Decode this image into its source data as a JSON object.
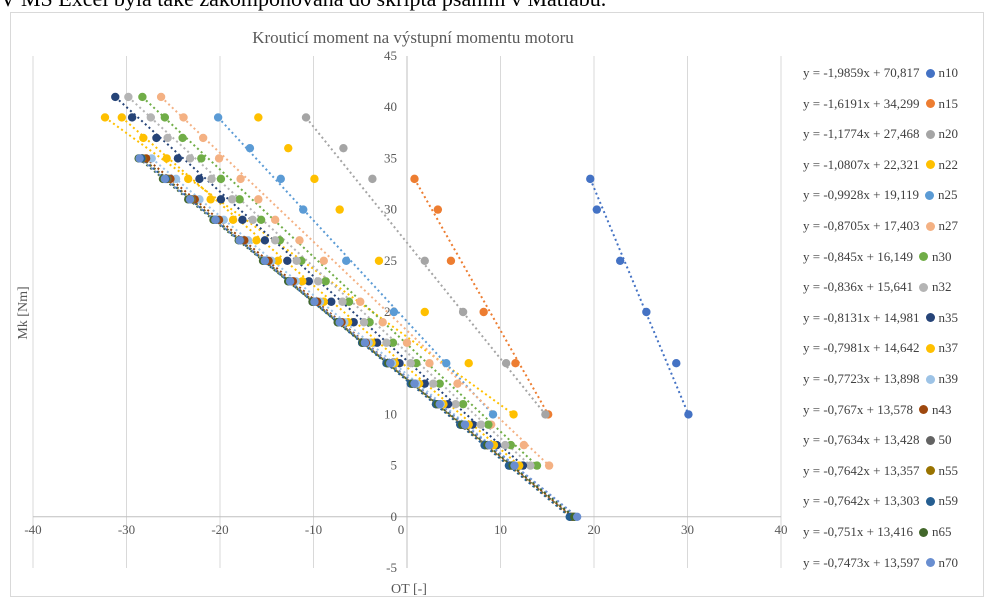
{
  "top_caption": "V MS Excel byla také zakomponována do skripta psaním v Matlabu.",
  "chart_data": {
    "type": "scatter",
    "title": "Krouticí moment na výstupní momentu motoru",
    "xlabel": "OT [-]",
    "ylabel": "Mk [Nm]",
    "xlim": [
      -40,
      40
    ],
    "ylim": [
      -5,
      45
    ],
    "xticks": [
      "-40",
      "-30",
      "-20",
      "-10",
      "0",
      "10",
      "20",
      "30",
      "40"
    ],
    "yticks": [
      "-5",
      "0",
      "5",
      "10",
      "15",
      "20",
      "25",
      "30",
      "35",
      "40",
      "45"
    ],
    "grid": "vertical",
    "legend_position": "right",
    "y_at_zero": [
      33,
      30,
      25,
      20,
      15,
      10
    ],
    "series": [
      {
        "name": "n10",
        "equation": "y = -1,9859x + 70,817",
        "color": "#4472c4",
        "slope": -1.9859,
        "intercept": 70.817,
        "x": [
          19.6,
          20.3,
          22.8,
          25.6,
          28.8,
          30.1
        ],
        "y": [
          33,
          30,
          25,
          20,
          15,
          10
        ]
      },
      {
        "name": "n15",
        "equation": "y = -1,6191x + 34,299",
        "color": "#ed7d31",
        "slope": -1.6191,
        "intercept": 34.299,
        "x": [
          0.8,
          3.3,
          4.7,
          8.2,
          11.6,
          15.1
        ],
        "y": [
          33,
          30,
          25,
          20,
          15,
          10
        ]
      },
      {
        "name": "n20",
        "equation": "y = -1,1774x + 27,468",
        "color": "#a5a5a5",
        "slope": -1.1774,
        "intercept": 27.468,
        "x": [
          -10.8,
          -6.8,
          -3.7,
          1.9,
          6.0,
          10.6,
          14.8
        ],
        "y": [
          39,
          36,
          33,
          25,
          20,
          15,
          10
        ]
      },
      {
        "name": "n22",
        "equation": "y = -1,0807x + 22,321",
        "color": "#ffc000",
        "slope": -1.0807,
        "intercept": 22.321,
        "x": [
          -32.3,
          -15.9,
          -12.7,
          -9.9,
          -7.2,
          -3.0,
          1.9,
          6.6,
          11.4
        ],
        "y": [
          39,
          39,
          36,
          33,
          30,
          25,
          20,
          15,
          10
        ]
      },
      {
        "name": "n25",
        "equation": "y = -0,9928x + 19,119",
        "color": "#5b9bd5",
        "slope": -0.9928,
        "intercept": 19.119,
        "x": [
          -20.2,
          -16.8,
          -13.5,
          -11.1,
          -6.5,
          -1.4,
          4.2,
          9.2
        ],
        "y": [
          39,
          36,
          33,
          30,
          25,
          20,
          15,
          10
        ]
      },
      {
        "name": "n27",
        "equation": "y = -0,8705x + 17,403",
        "color": "#f4b183",
        "slope": -0.8705,
        "intercept": 17.403,
        "x": [
          -26.3,
          -23.9,
          -21.8,
          -20.1,
          -17.8,
          -15.9,
          -14.1,
          -11.5,
          -8.9,
          -5.0,
          -2.6,
          0.0,
          2.4,
          5.4,
          9.0,
          12.5,
          15.2
        ],
        "y": [
          41,
          39,
          37,
          35,
          33,
          31,
          29,
          27,
          25,
          21,
          19,
          17,
          15,
          13,
          9,
          7,
          5
        ]
      },
      {
        "name": "n30",
        "equation": "y = -0,845x + 16,149",
        "color": "#70ad47",
        "slope": -0.845,
        "intercept": 16.149,
        "x": [
          -28.3,
          -25.9,
          -24.0,
          -22.0,
          -19.9,
          -17.9,
          -15.6,
          -13.6,
          -11.3,
          -8.7,
          -6.2,
          -4.0,
          -1.5,
          1.0,
          3.5,
          6.0,
          8.7,
          11.1,
          13.9
        ],
        "y": [
          41,
          39,
          37,
          35,
          33,
          31,
          29,
          27,
          25,
          23,
          21,
          19,
          17,
          15,
          13,
          11,
          9,
          7,
          5
        ]
      },
      {
        "name": "n32",
        "equation": "y = -0,836x + 15,641",
        "color": "#b4b4b4",
        "slope": -0.836,
        "intercept": 15.641,
        "x": [
          -29.8,
          -27.4,
          -25.6,
          -23.2,
          -20.9,
          -18.7,
          -16.5,
          -14.1,
          -11.8,
          -9.5,
          -6.9,
          -4.6,
          -2.2,
          0.4,
          2.8,
          5.2,
          7.9,
          10.5,
          13.2
        ],
        "y": [
          41,
          39,
          37,
          35,
          33,
          31,
          29,
          27,
          25,
          23,
          21,
          19,
          17,
          15,
          13,
          11,
          9,
          7,
          5
        ]
      },
      {
        "name": "n35",
        "equation": "y = -0,8131x + 14,981",
        "color": "#264478",
        "slope": -0.8131,
        "intercept": 14.981,
        "x": [
          -31.2,
          -29.4,
          -26.8,
          -24.5,
          -22.2,
          -19.9,
          -17.6,
          -15.2,
          -12.8,
          -10.5,
          -8.1,
          -5.7,
          -3.2,
          -0.8,
          1.9,
          4.4,
          7.0,
          9.6,
          12.4
        ],
        "y": [
          41,
          39,
          37,
          35,
          33,
          31,
          29,
          27,
          25,
          23,
          21,
          19,
          17,
          15,
          13,
          11,
          9,
          7,
          5
        ]
      },
      {
        "name": "n37",
        "equation": "y = -0,7981x + 14,642",
        "color": "#ffc000",
        "slope": -0.7981,
        "intercept": 14.642,
        "x": [
          -30.5,
          -28.2,
          -25.7,
          -23.4,
          -21.0,
          -18.6,
          -16.1,
          -13.8,
          -11.2,
          -8.9,
          -6.3,
          -3.8,
          -1.3,
          1.3,
          3.9,
          6.6,
          9.3,
          12.0
        ],
        "y": [
          39,
          37,
          35,
          33,
          31,
          29,
          27,
          25,
          23,
          21,
          19,
          17,
          15,
          13,
          11,
          9,
          7,
          5
        ]
      },
      {
        "name": "n39",
        "equation": "y = -0,7723x + 13,898",
        "color": "#9dc3e6",
        "slope": -0.7723,
        "intercept": 13.898,
        "x": [
          -27.3,
          -24.7,
          -22.2,
          -19.6,
          -17.0,
          -14.5,
          -11.9,
          -9.3,
          -6.7,
          -4.1,
          -1.6,
          1.0,
          3.6,
          6.2,
          8.8,
          11.4,
          18.0
        ],
        "y": [
          35,
          33,
          31,
          29,
          27,
          25,
          23,
          21,
          19,
          17,
          15,
          13,
          11,
          9,
          7,
          5,
          0
        ]
      },
      {
        "name": "n43",
        "equation": "y = -0,767x + 13,578",
        "color": "#9e480e",
        "slope": -0.767,
        "intercept": 13.578,
        "x": [
          -27.9,
          -25.3,
          -22.7,
          -20.1,
          -17.4,
          -14.8,
          -12.2,
          -9.6,
          -7.0,
          -4.4,
          -1.8,
          0.8,
          3.4,
          6.0,
          8.6,
          11.2,
          17.7
        ],
        "y": [
          35,
          33,
          31,
          29,
          27,
          25,
          23,
          21,
          19,
          17,
          15,
          13,
          11,
          9,
          7,
          5,
          0
        ]
      },
      {
        "name": "50",
        "equation": "y = -0,7634x + 13,428",
        "color": "#636363",
        "slope": -0.7634,
        "intercept": 13.428,
        "x": [
          -28.3,
          -25.6,
          -23.0,
          -20.4,
          -17.8,
          -15.2,
          -12.5,
          -9.9,
          -7.3,
          -4.7,
          -2.1,
          0.6,
          3.2,
          5.8,
          8.4,
          11.0,
          17.6
        ],
        "y": [
          35,
          33,
          31,
          29,
          27,
          25,
          23,
          21,
          19,
          17,
          15,
          13,
          11,
          9,
          7,
          5,
          0
        ]
      },
      {
        "name": "n55",
        "equation": "y = -0,7642x + 13,357",
        "color": "#997300",
        "slope": -0.7642,
        "intercept": 13.357,
        "x": [
          -28.3,
          -25.7,
          -23.1,
          -20.5,
          -17.9,
          -15.2,
          -12.6,
          -10.0,
          -7.4,
          -4.8,
          -2.1,
          0.5,
          3.1,
          5.7,
          8.3,
          11.0,
          17.5
        ],
        "y": [
          35,
          33,
          31,
          29,
          27,
          25,
          23,
          21,
          19,
          17,
          15,
          13,
          11,
          9,
          7,
          5,
          0
        ]
      },
      {
        "name": "n59",
        "equation": "y = -0,7642x + 13,303",
        "color": "#255e91",
        "slope": -0.7642,
        "intercept": 13.303,
        "x": [
          -28.4,
          -25.8,
          -23.2,
          -20.5,
          -17.9,
          -15.3,
          -12.7,
          -10.1,
          -7.4,
          -4.8,
          -2.2,
          0.4,
          3.1,
          5.7,
          8.3,
          10.9,
          17.4
        ],
        "y": [
          35,
          33,
          31,
          29,
          27,
          25,
          23,
          21,
          19,
          17,
          15,
          13,
          11,
          9,
          7,
          5,
          0
        ]
      },
      {
        "name": "n65",
        "equation": "y = -0,751x + 13,416",
        "color": "#43682b",
        "slope": -0.751,
        "intercept": 13.416,
        "x": [
          -28.7,
          -26.1,
          -23.4,
          -20.7,
          -18.0,
          -15.4,
          -12.7,
          -10.1,
          -7.4,
          -4.7,
          -2.0,
          0.6,
          3.3,
          5.9,
          8.6,
          11.3,
          17.9
        ],
        "y": [
          35,
          33,
          31,
          29,
          27,
          25,
          23,
          21,
          19,
          17,
          15,
          13,
          11,
          9,
          7,
          5,
          0
        ]
      },
      {
        "name": "n70",
        "equation": "y = -0,7473x + 13,597",
        "color": "#698ed0",
        "slope": -0.7473,
        "intercept": 13.597,
        "x": [
          -28.6,
          -25.9,
          -23.2,
          -20.5,
          -17.9,
          -15.2,
          -12.5,
          -9.9,
          -7.2,
          -4.5,
          -1.8,
          0.8,
          3.5,
          6.2,
          8.8,
          11.5,
          18.2
        ],
        "y": [
          35,
          33,
          31,
          29,
          27,
          25,
          23,
          21,
          19,
          17,
          15,
          13,
          11,
          9,
          7,
          5,
          0
        ]
      }
    ]
  }
}
